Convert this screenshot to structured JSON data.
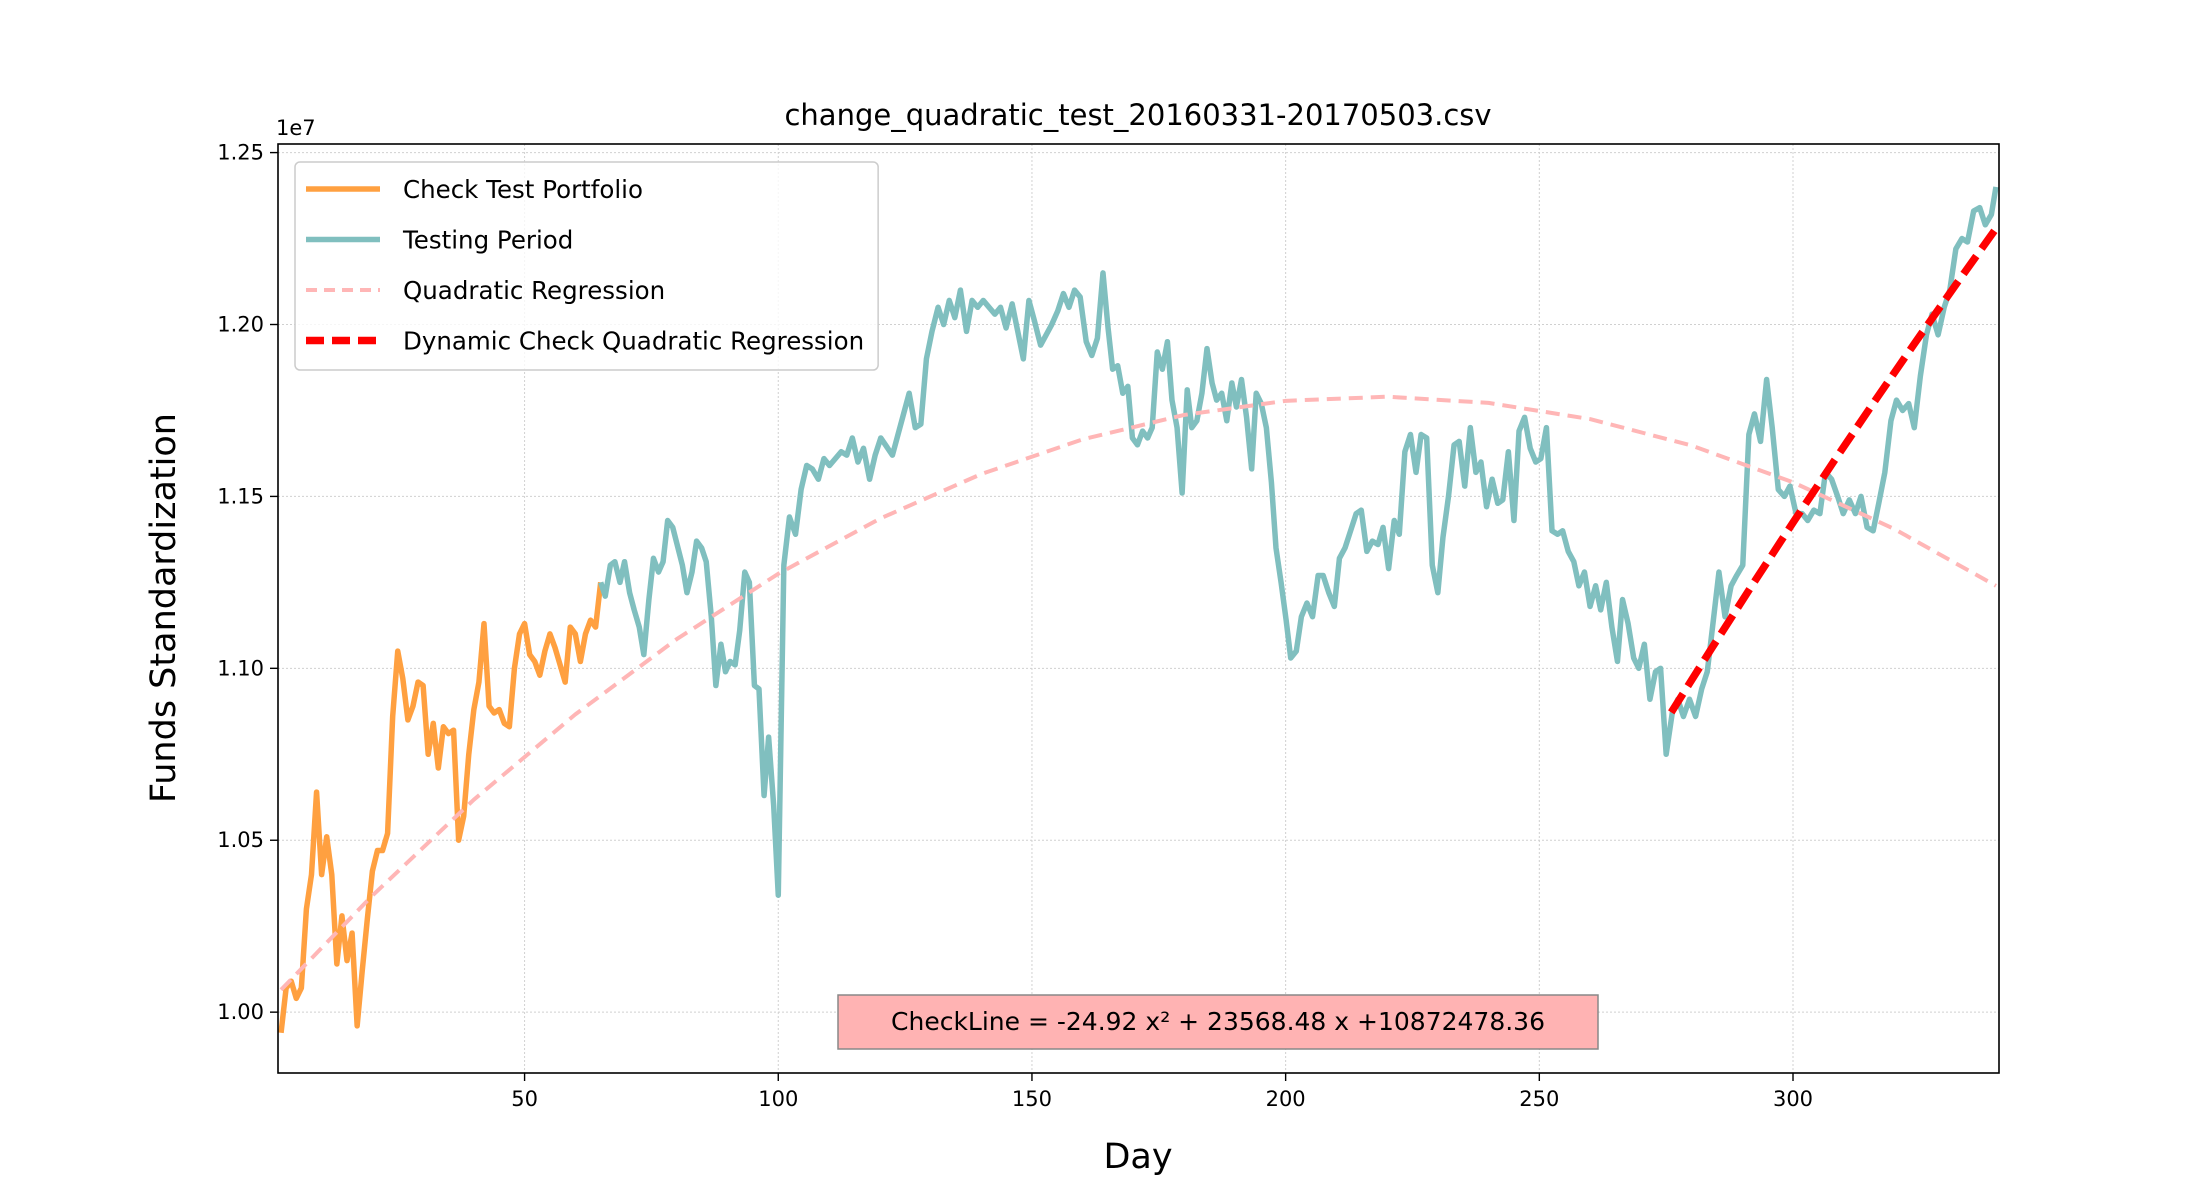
{
  "chart_data": {
    "type": "line",
    "title": "change_quadratic_test_20160331-20170503.csv",
    "xlabel": "Day",
    "ylabel": "Funds Standardization",
    "y_offset_label": "1e7",
    "annotation": "CheckLine = -24.92 x² + 23568.48 x +10872478.36",
    "xlim": [
      1.4,
      340.6
    ],
    "ylim": [
      0.9823,
      1.2525
    ],
    "xticks": [
      50,
      100,
      150,
      200,
      250,
      300
    ],
    "yticks": [
      {
        "value": 1.0,
        "label": "1.00"
      },
      {
        "value": 1.05,
        "label": "1.05"
      },
      {
        "value": 1.1,
        "label": "1.10"
      },
      {
        "value": 1.15,
        "label": "1.15"
      },
      {
        "value": 1.2,
        "label": "1.20"
      },
      {
        "value": 1.25,
        "label": "1.25"
      }
    ],
    "grid": true,
    "legend": "upper left",
    "series": [
      {
        "name": "Check Test Portfolio",
        "color": "#ffa040",
        "linestyle": "solid",
        "x": [
          2,
          3,
          4,
          5,
          6,
          7,
          8,
          9,
          10,
          11,
          12,
          13,
          14,
          15,
          16,
          17,
          18,
          19,
          20,
          21,
          22,
          23,
          24,
          25,
          26,
          27,
          28,
          29,
          30,
          31,
          32,
          33,
          34,
          35,
          36,
          37,
          38,
          39,
          40,
          41,
          42,
          43,
          44,
          45,
          46,
          47,
          48,
          49,
          50,
          51,
          52,
          53,
          54,
          55,
          56,
          57,
          58,
          59,
          60,
          61,
          62,
          63,
          64,
          65
        ],
        "values": [
          0.994,
          1.007,
          1.009,
          1.004,
          1.007,
          1.03,
          1.04,
          1.064,
          1.04,
          1.051,
          1.04,
          1.014,
          1.028,
          1.015,
          1.023,
          0.996,
          1.012,
          1.027,
          1.041,
          1.047,
          1.047,
          1.052,
          1.086,
          1.105,
          1.097,
          1.085,
          1.089,
          1.096,
          1.095,
          1.075,
          1.084,
          1.071,
          1.083,
          1.081,
          1.082,
          1.05,
          1.057,
          1.075,
          1.088,
          1.096,
          1.113,
          1.089,
          1.087,
          1.088,
          1.084,
          1.083,
          1.1,
          1.11,
          1.113,
          1.104,
          1.102,
          1.098,
          1.105,
          1.11,
          1.106,
          1.101,
          1.096,
          1.112,
          1.11,
          1.102,
          1.11,
          1.114,
          1.112,
          1.125
        ]
      },
      {
        "name": "Testing Period",
        "color": "#80bfbf",
        "linestyle": "solid",
        "x": [
          65,
          65.9,
          66.9,
          67.8,
          68.8,
          69.7,
          70.7,
          71.6,
          72.6,
          73.5,
          74.5,
          75.4,
          76.4,
          77.3,
          78.2,
          79.2,
          81.1,
          82.0,
          83.0,
          83.9,
          84.9,
          85.8,
          86.8,
          87.7,
          88.7,
          89.6,
          90.5,
          91.5,
          92.4,
          93.4,
          94.3,
          95.3,
          96.2,
          97.2,
          98.1,
          99.1,
          100,
          101.1,
          102.2,
          103.4,
          104.5,
          105.6,
          106.7,
          107.9,
          109.0,
          110.1,
          112.4,
          113.5,
          114.6,
          115.7,
          116.8,
          118.0,
          119.1,
          120.2,
          122.5,
          123.6,
          124.7,
          125.8,
          127.0,
          128.1,
          129.2,
          130.3,
          131.5,
          132.6,
          133.7,
          134.8,
          135.9,
          137.1,
          138.2,
          139.3,
          140.4,
          142.7,
          143.8,
          144.9,
          146.1,
          147.2,
          148.3,
          149.4,
          150.5,
          151.7,
          153.9,
          155.1,
          156.2,
          157.3,
          158.4,
          159.5,
          160.7,
          161.8,
          162.9,
          164,
          165.0,
          165.9,
          166.9,
          167.9,
          168.9,
          169.8,
          170.8,
          171.8,
          172.8,
          173.7,
          174.7,
          175.7,
          176.7,
          177.6,
          178.6,
          179.6,
          180.6,
          181.5,
          182.5,
          183.5,
          184.5,
          185.5,
          186.4,
          187.4,
          188.4,
          189.4,
          190.3,
          191.3,
          192.3,
          193.3,
          194.2,
          195.2,
          196.2,
          197.2,
          198.1,
          199.1,
          200.1,
          201,
          202.1,
          203.1,
          204.2,
          205.3,
          206.4,
          207.4,
          208.5,
          209.6,
          210.6,
          211.7,
          212.8,
          213.9,
          214.9,
          216.0,
          217.1,
          218.2,
          219.2,
          220.3,
          221.4,
          222.4,
          223.5,
          224.6,
          225.7,
          226.7,
          227.8,
          228.9,
          230.0,
          231.0,
          232.1,
          233.2,
          234.2,
          235.3,
          236.4,
          237.5,
          238.5,
          239.6,
          240.7,
          241.8,
          242.8,
          243.9,
          245.0,
          246.0,
          247.1,
          248.2,
          249.3,
          250.3,
          251.4,
          252.5,
          253.6,
          254.6,
          255.7,
          256.8,
          257.8,
          258.9,
          260.0,
          261.1,
          262.1,
          263.2,
          264.3,
          265.4,
          266.4,
          267.5,
          268.6,
          269.6,
          270.7,
          271.8,
          272.9,
          273.9,
          275,
          276.2,
          277.3,
          278.4,
          279.6,
          280.8,
          282.0,
          283.1,
          284.3,
          285.4,
          286.6,
          287.8,
          288.9,
          290.1,
          291.3,
          292.4,
          293.6,
          294.8,
          295.9,
          297.1,
          298.3,
          299.4,
          300.6,
          301.8,
          302.9,
          304.1,
          305.3,
          306.4,
          307.6,
          308.8,
          309.9,
          311.1,
          312.3,
          313.4,
          314.6,
          315.8,
          316.9,
          318.1,
          319.3,
          320.4,
          321.6,
          322.8,
          323.9,
          325.1,
          326.3,
          327.4,
          328.6,
          329.8,
          330.9,
          332.1,
          333.3,
          334.4,
          335.6,
          336.8,
          337.9,
          339.1,
          340
        ],
        "values": [
          1.125,
          1.121,
          1.13,
          1.131,
          1.125,
          1.131,
          1.122,
          1.117,
          1.112,
          1.104,
          1.12,
          1.132,
          1.128,
          1.131,
          1.143,
          1.141,
          1.13,
          1.122,
          1.128,
          1.137,
          1.135,
          1.131,
          1.115,
          1.095,
          1.107,
          1.099,
          1.102,
          1.101,
          1.111,
          1.128,
          1.125,
          1.095,
          1.094,
          1.063,
          1.08,
          1.06,
          1.034,
          1.13,
          1.144,
          1.139,
          1.152,
          1.159,
          1.158,
          1.155,
          1.161,
          1.159,
          1.163,
          1.162,
          1.167,
          1.16,
          1.164,
          1.155,
          1.162,
          1.167,
          1.162,
          1.168,
          1.174,
          1.18,
          1.17,
          1.171,
          1.19,
          1.198,
          1.205,
          1.2,
          1.207,
          1.202,
          1.21,
          1.198,
          1.207,
          1.205,
          1.207,
          1.203,
          1.205,
          1.199,
          1.206,
          1.198,
          1.19,
          1.207,
          1.201,
          1.194,
          1.2,
          1.204,
          1.209,
          1.205,
          1.21,
          1.208,
          1.195,
          1.191,
          1.196,
          1.215,
          1.199,
          1.187,
          1.188,
          1.18,
          1.182,
          1.167,
          1.165,
          1.169,
          1.167,
          1.17,
          1.192,
          1.187,
          1.195,
          1.178,
          1.17,
          1.151,
          1.181,
          1.17,
          1.172,
          1.18,
          1.193,
          1.183,
          1.178,
          1.18,
          1.172,
          1.183,
          1.176,
          1.184,
          1.173,
          1.158,
          1.18,
          1.177,
          1.17,
          1.154,
          1.135,
          1.125,
          1.114,
          1.103,
          1.105,
          1.115,
          1.119,
          1.115,
          1.127,
          1.127,
          1.122,
          1.118,
          1.132,
          1.135,
          1.14,
          1.145,
          1.146,
          1.134,
          1.137,
          1.136,
          1.141,
          1.129,
          1.143,
          1.139,
          1.163,
          1.168,
          1.157,
          1.168,
          1.167,
          1.13,
          1.122,
          1.138,
          1.15,
          1.165,
          1.166,
          1.153,
          1.17,
          1.157,
          1.16,
          1.147,
          1.155,
          1.148,
          1.149,
          1.163,
          1.143,
          1.169,
          1.173,
          1.164,
          1.16,
          1.161,
          1.17,
          1.14,
          1.139,
          1.14,
          1.134,
          1.131,
          1.124,
          1.128,
          1.118,
          1.124,
          1.117,
          1.125,
          1.112,
          1.102,
          1.12,
          1.113,
          1.103,
          1.1,
          1.107,
          1.091,
          1.099,
          1.1,
          1.075,
          1.087,
          1.091,
          1.086,
          1.091,
          1.086,
          1.094,
          1.099,
          1.114,
          1.128,
          1.115,
          1.124,
          1.127,
          1.13,
          1.168,
          1.174,
          1.166,
          1.184,
          1.17,
          1.152,
          1.15,
          1.153,
          1.145,
          1.145,
          1.143,
          1.146,
          1.145,
          1.157,
          1.155,
          1.15,
          1.145,
          1.149,
          1.145,
          1.15,
          1.141,
          1.14,
          1.148,
          1.157,
          1.172,
          1.178,
          1.175,
          1.177,
          1.17,
          1.185,
          1.197,
          1.203,
          1.197,
          1.205,
          1.21,
          1.222,
          1.225,
          1.224,
          1.233,
          1.234,
          1.229,
          1.232,
          1.24
        ]
      },
      {
        "name": "Quadratic Regression",
        "color": "#ffb6b6",
        "linestyle": "dashed",
        "x": [
          2,
          20,
          40,
          60,
          80,
          100,
          120,
          140,
          160,
          180,
          200,
          220,
          240,
          260,
          280,
          300,
          320,
          340
        ],
        "values": [
          1.0065,
          1.0339,
          1.0618,
          1.0866,
          1.1085,
          1.1275,
          1.1435,
          1.1565,
          1.1666,
          1.1737,
          1.1778,
          1.179,
          1.1772,
          1.1725,
          1.1648,
          1.1541,
          1.1405,
          1.124
        ]
      },
      {
        "name": "Dynamic Check Quadratic Regression",
        "color": "#ff0000",
        "linestyle": "dashed",
        "x": [
          276,
          284,
          292,
          300,
          308,
          316,
          324,
          332,
          340
        ],
        "values": [
          1.0872,
          1.1059,
          1.1243,
          1.1424,
          1.1601,
          1.1775,
          1.1946,
          1.2114,
          1.2279
        ]
      }
    ]
  }
}
